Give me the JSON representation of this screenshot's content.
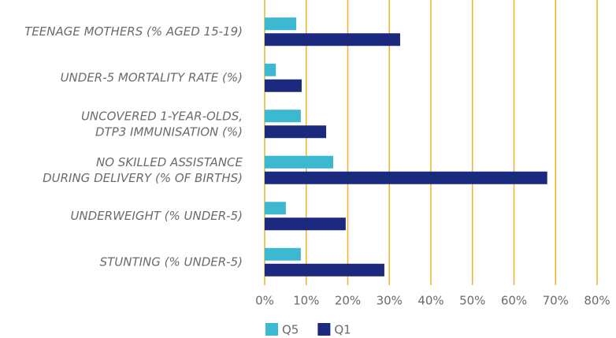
{
  "chart_data": {
    "type": "bar",
    "orientation": "horizontal",
    "categories": [
      "TEENAGE MOTHERS (% AGED 15-19)",
      "UNDER-5 MORTALITY RATE (%)",
      "UNCOVERED 1-YEAR-OLDS,\nDTP3 IMMUNISATION (%)",
      "NO SKILLED ASSISTANCE\nDURING DELIVERY (% OF BIRTHS)",
      "UNDERWEIGHT (% UNDER-5)",
      "STUNTING (% UNDER-5)"
    ],
    "series": [
      {
        "name": "Q5",
        "color": "#3cb9d1",
        "values": [
          7.6,
          2.7,
          8.7,
          16.5,
          5.1,
          8.7
        ]
      },
      {
        "name": "Q1",
        "color": "#1b2a7e",
        "values": [
          32.6,
          8.9,
          14.8,
          68,
          19.5,
          28.8
        ]
      }
    ],
    "xlim": [
      0,
      80
    ],
    "xticks": [
      {
        "value": 0,
        "label": "0%"
      },
      {
        "value": 10,
        "label": "10%"
      },
      {
        "value": 20,
        "label": "20%"
      },
      {
        "value": 30,
        "label": "30%"
      },
      {
        "value": 40,
        "label": "40%"
      },
      {
        "value": 50,
        "label": "50%"
      },
      {
        "value": 60,
        "label": "60%"
      },
      {
        "value": 70,
        "label": "70%"
      },
      {
        "value": 80,
        "label": "80%"
      }
    ],
    "grid": true,
    "grid_color": "#f0b429",
    "legend": "bottom"
  }
}
